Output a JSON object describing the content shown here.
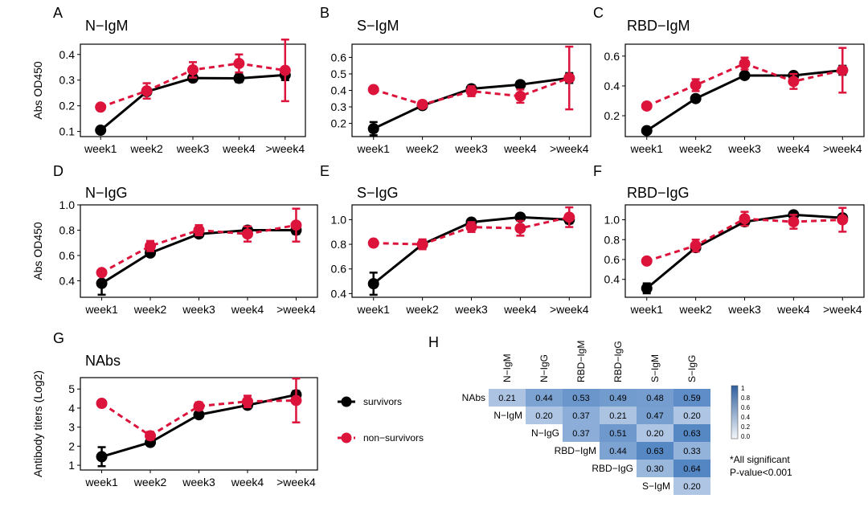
{
  "colors": {
    "survivors": "#000000",
    "non_survivors": "#dc143c",
    "heatmap_low": "#f0f4fa",
    "heatmap_high": "#4a7fc0"
  },
  "legend": {
    "survivors": "survivors",
    "non_survivors": "non−survivors"
  },
  "heatmap_note": {
    "line1": "*All significant",
    "line2": "P-value<0.001"
  },
  "chart_data": [
    {
      "type": "line",
      "panel": "A",
      "title": "N−IgM",
      "ylabel": "Abs OD450",
      "xlabel": "",
      "categories": [
        "week1",
        "week2",
        "week3",
        "week4",
        ">week4"
      ],
      "ylim": [
        0.08,
        0.44
      ],
      "yticks": [
        "0.1",
        "0.2",
        "0.3",
        "0.4"
      ],
      "series": [
        {
          "name": "survivors",
          "values": [
            0.105,
            0.255,
            0.308,
            0.307,
            0.32
          ],
          "err": [
            0.008,
            0.012,
            0.012,
            0.015,
            0.02
          ]
        },
        {
          "name": "non−survivors",
          "values": [
            0.195,
            0.258,
            0.34,
            0.365,
            0.338
          ],
          "err": [
            0.008,
            0.03,
            0.03,
            0.035,
            0.12
          ]
        }
      ]
    },
    {
      "type": "line",
      "panel": "B",
      "title": "S−IgM",
      "ylabel": "",
      "xlabel": "",
      "categories": [
        "week1",
        "week2",
        "week3",
        "week4",
        ">week4"
      ],
      "ylim": [
        0.12,
        0.68
      ],
      "yticks": [
        "0.2",
        "0.3",
        "0.4",
        "0.5",
        "0.6"
      ],
      "series": [
        {
          "name": "survivors",
          "values": [
            0.168,
            0.308,
            0.41,
            0.435,
            0.475
          ],
          "err": [
            0.04,
            0.015,
            0.02,
            0.02,
            0.03
          ]
        },
        {
          "name": "non−survivors",
          "values": [
            0.405,
            0.315,
            0.395,
            0.365,
            0.475
          ],
          "err": [
            0.012,
            0.02,
            0.03,
            0.04,
            0.19
          ]
        }
      ]
    },
    {
      "type": "line",
      "panel": "C",
      "title": "RBD−IgM",
      "ylabel": "",
      "xlabel": "",
      "categories": [
        "week1",
        "week2",
        "week3",
        "week4",
        ">week4"
      ],
      "ylim": [
        0.06,
        0.68
      ],
      "yticks": [
        "0.2",
        "0.4",
        "0.6"
      ],
      "series": [
        {
          "name": "survivors",
          "values": [
            0.1,
            0.315,
            0.47,
            0.47,
            0.505
          ],
          "err": [
            0.012,
            0.02,
            0.02,
            0.02,
            0.03
          ]
        },
        {
          "name": "non−survivors",
          "values": [
            0.265,
            0.405,
            0.55,
            0.43,
            0.505
          ],
          "err": [
            0.012,
            0.04,
            0.04,
            0.05,
            0.15
          ]
        }
      ]
    },
    {
      "type": "line",
      "panel": "D",
      "title": "N−IgG",
      "ylabel": "Abs OD450",
      "xlabel": "",
      "categories": [
        "week1",
        "week2",
        "week3",
        "week4",
        ">week4"
      ],
      "ylim": [
        0.27,
        1.0
      ],
      "yticks": [
        "0.4",
        "0.6",
        "0.8",
        "1.0"
      ],
      "series": [
        {
          "name": "survivors",
          "values": [
            0.38,
            0.62,
            0.77,
            0.8,
            0.8
          ],
          "err": [
            0.09,
            0.02,
            0.02,
            0.03,
            0.03
          ]
        },
        {
          "name": "non−survivors",
          "values": [
            0.465,
            0.675,
            0.8,
            0.77,
            0.84
          ],
          "err": [
            0.015,
            0.04,
            0.04,
            0.06,
            0.13
          ]
        }
      ]
    },
    {
      "type": "line",
      "panel": "E",
      "title": "S−IgG",
      "ylabel": "",
      "xlabel": "",
      "categories": [
        "week1",
        "week2",
        "week3",
        "week4",
        ">week4"
      ],
      "ylim": [
        0.37,
        1.12
      ],
      "yticks": [
        "0.4",
        "0.6",
        "0.8",
        "1.0"
      ],
      "series": [
        {
          "name": "survivors",
          "values": [
            0.48,
            0.8,
            0.98,
            1.02,
            1.0
          ],
          "err": [
            0.09,
            0.03,
            0.02,
            0.02,
            0.03
          ]
        },
        {
          "name": "non−survivors",
          "values": [
            0.81,
            0.8,
            0.94,
            0.93,
            1.02
          ],
          "err": [
            0.015,
            0.04,
            0.04,
            0.06,
            0.08
          ]
        }
      ]
    },
    {
      "type": "line",
      "panel": "F",
      "title": "RBD−IgG",
      "ylabel": "",
      "xlabel": "",
      "categories": [
        "week1",
        "week2",
        "week3",
        "week4",
        ">week4"
      ],
      "ylim": [
        0.22,
        1.15
      ],
      "yticks": [
        "0.4",
        "0.6",
        "0.8",
        "1.0"
      ],
      "series": [
        {
          "name": "survivors",
          "values": [
            0.31,
            0.72,
            0.98,
            1.05,
            1.02
          ],
          "err": [
            0.05,
            0.03,
            0.02,
            0.02,
            0.02
          ]
        },
        {
          "name": "non−survivors",
          "values": [
            0.585,
            0.74,
            1.01,
            0.98,
            1.0
          ],
          "err": [
            0.015,
            0.06,
            0.07,
            0.07,
            0.12
          ]
        }
      ]
    },
    {
      "type": "line",
      "panel": "G",
      "title": "NAbs",
      "ylabel": "Antibody titers (Log2)",
      "xlabel": "",
      "categories": [
        "week1",
        "week2",
        "week3",
        "week4",
        ">week4"
      ],
      "ylim": [
        0.75,
        5.6
      ],
      "yticks": [
        "1",
        "2",
        "3",
        "4",
        "5"
      ],
      "series": [
        {
          "name": "survivors",
          "values": [
            1.45,
            2.2,
            3.65,
            4.15,
            4.7
          ],
          "err": [
            0.5,
            0.12,
            0.15,
            0.15,
            0.2
          ]
        },
        {
          "name": "non−survivors",
          "values": [
            4.25,
            2.55,
            4.1,
            4.35,
            4.4
          ],
          "err": [
            0.05,
            0.2,
            0.2,
            0.3,
            1.15
          ]
        }
      ]
    },
    {
      "type": "heatmap",
      "panel": "H",
      "columns": [
        "N−IgM",
        "N−IgG",
        "RBD−IgM",
        "RBD−IgG",
        "S−IgM",
        "S−IgG"
      ],
      "rows": [
        "NAbs",
        "N−IgM",
        "N−IgG",
        "RBD−IgM",
        "RBD−IgG",
        "S−IgM"
      ],
      "cells": [
        [
          "0.21",
          "0.44",
          "0.53",
          "0.49",
          "0.48",
          "0.59"
        ],
        [
          "",
          "0.20",
          "0.37",
          "0.21",
          "0.47",
          "0.20"
        ],
        [
          "",
          "",
          "0.37",
          "0.51",
          "0.20",
          "0.63"
        ],
        [
          "",
          "",
          "",
          "0.44",
          "0.63",
          "0.33"
        ],
        [
          "",
          "",
          "",
          "",
          "0.30",
          "0.64"
        ],
        [
          "",
          "",
          "",
          "",
          "",
          "0.20"
        ]
      ],
      "colorbar_ticks": [
        "1",
        "0.8",
        "0.6",
        "0.4",
        "0.2",
        "0.0"
      ],
      "colorbar_range": [
        0,
        1
      ]
    }
  ]
}
